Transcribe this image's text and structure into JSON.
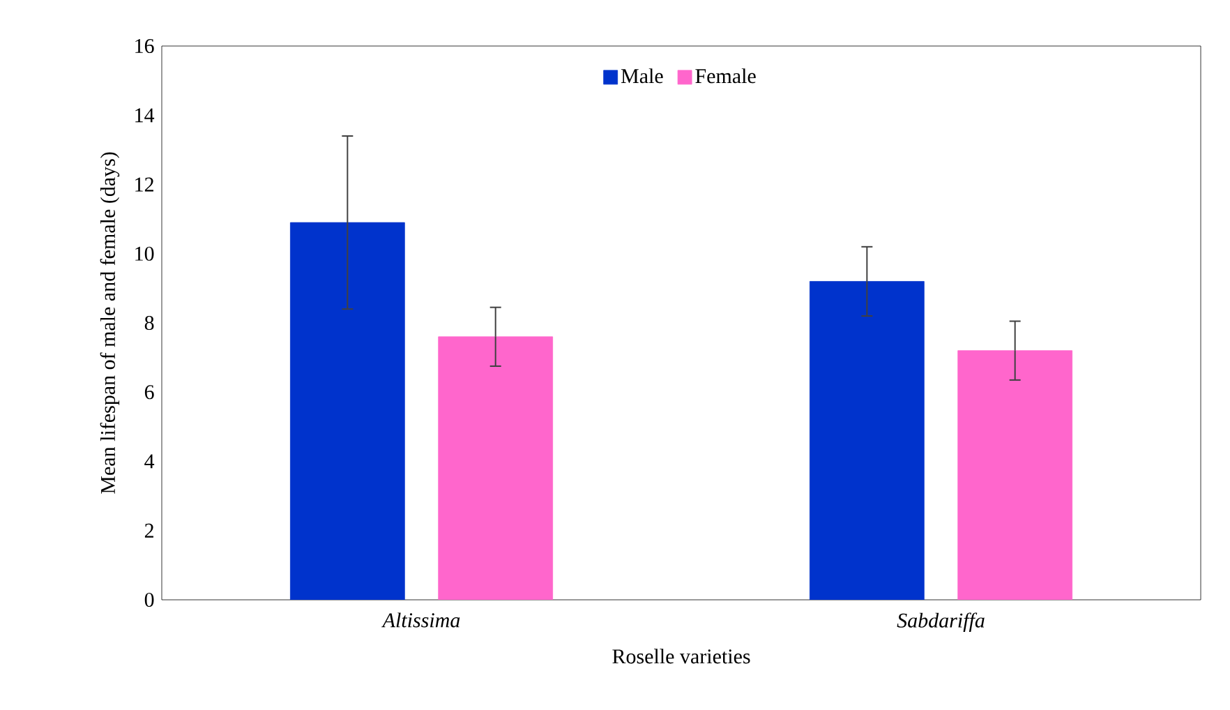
{
  "chart_data": {
    "type": "bar",
    "xlabel": "Roselle varieties",
    "ylabel": "Mean lifespan of male and female (days)",
    "categories": [
      "*Altissima*",
      "*Sabdariffa*"
    ],
    "series": [
      {
        "name": "Male",
        "color": "#0033cc",
        "values": [
          10.9,
          9.2
        ],
        "errors": [
          2.5,
          1.0
        ]
      },
      {
        "name": "Female",
        "color": "#ff66cc",
        "values": [
          7.6,
          7.2
        ],
        "errors": [
          0.85,
          0.85
        ]
      }
    ],
    "ylim": [
      0,
      16
    ],
    "yticks": [
      0,
      2,
      4,
      6,
      8,
      10,
      12,
      14,
      16
    ],
    "legend": "top",
    "grid": false
  }
}
